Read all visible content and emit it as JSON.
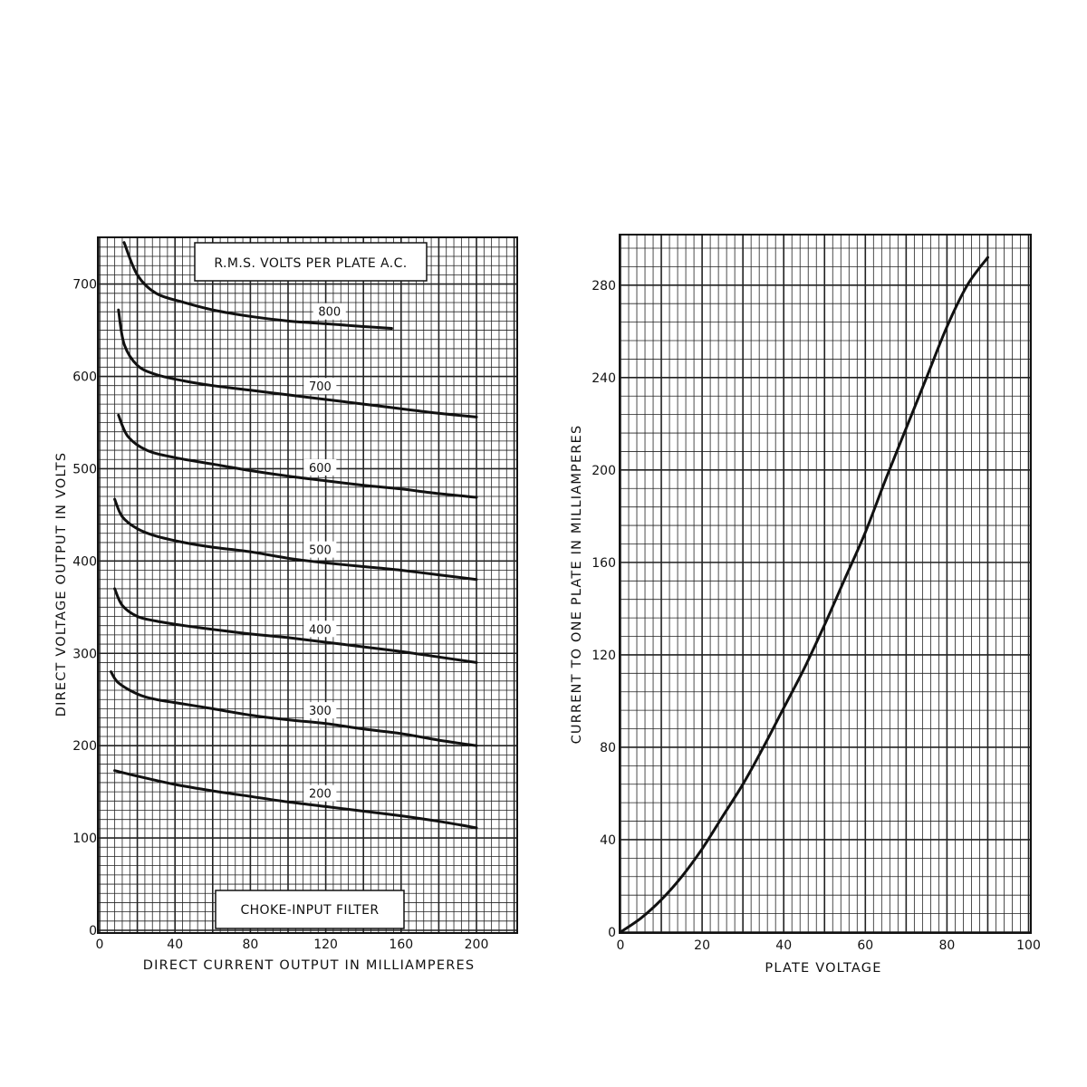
{
  "chart_data": [
    {
      "type": "line",
      "title": "",
      "xlabel": "DIRECT CURRENT OUTPUT IN MILLIAMPERES",
      "ylabel": "DIRECT VOLTAGE OUTPUT IN VOLTS",
      "xlim": [
        0,
        220
      ],
      "ylim": [
        0,
        750
      ],
      "x_ticks": [
        "0",
        "40",
        "80",
        "120",
        "160",
        "200"
      ],
      "y_ticks": [
        "0",
        "100",
        "200",
        "300",
        "400",
        "500",
        "600",
        "700"
      ],
      "grid": true,
      "legend_title": "R.M.S. VOLTS PER PLATE A.C.",
      "annotation": "CHOKE-INPUT FILTER",
      "series": [
        {
          "name": "800",
          "x": [
            13,
            20,
            30,
            45,
            60,
            80,
            100,
            120,
            140,
            155
          ],
          "y": [
            745,
            710,
            690,
            680,
            672,
            665,
            660,
            657,
            654,
            652
          ]
        },
        {
          "name": "700",
          "x": [
            10,
            13,
            20,
            30,
            45,
            60,
            80,
            100,
            120,
            140,
            160,
            180,
            200
          ],
          "y": [
            672,
            635,
            612,
            602,
            595,
            590,
            585,
            580,
            575,
            570,
            565,
            560,
            556
          ]
        },
        {
          "name": "600",
          "x": [
            10,
            15,
            25,
            40,
            60,
            80,
            100,
            120,
            140,
            160,
            180,
            200
          ],
          "y": [
            558,
            535,
            520,
            512,
            505,
            498,
            492,
            487,
            482,
            478,
            473,
            469
          ]
        },
        {
          "name": "500",
          "x": [
            8,
            12,
            20,
            30,
            45,
            60,
            80,
            100,
            120,
            140,
            160,
            180,
            200
          ],
          "y": [
            467,
            448,
            435,
            427,
            420,
            415,
            410,
            403,
            398,
            394,
            390,
            385,
            380
          ]
        },
        {
          "name": "400",
          "x": [
            8,
            12,
            20,
            30,
            45,
            60,
            80,
            100,
            120,
            140,
            160,
            180,
            200
          ],
          "y": [
            370,
            352,
            340,
            335,
            330,
            326,
            321,
            317,
            312,
            307,
            302,
            296,
            290
          ]
        },
        {
          "name": "300",
          "x": [
            6,
            10,
            20,
            30,
            45,
            60,
            80,
            100,
            120,
            140,
            160,
            180,
            200
          ],
          "y": [
            280,
            268,
            256,
            250,
            245,
            240,
            233,
            228,
            224,
            218,
            213,
            206,
            200
          ]
        },
        {
          "name": "200",
          "x": [
            8,
            20,
            40,
            60,
            80,
            100,
            120,
            140,
            160,
            180,
            200
          ],
          "y": [
            173,
            167,
            158,
            151,
            145,
            139,
            134,
            129,
            124,
            118,
            111
          ]
        }
      ]
    },
    {
      "type": "line",
      "title": "",
      "xlabel": "PLATE VOLTAGE",
      "ylabel": "CURRENT TO ONE PLATE IN MILLIAMPERES",
      "xlim": [
        0,
        100
      ],
      "ylim": [
        0,
        300
      ],
      "x_ticks": [
        "0",
        "20",
        "40",
        "60",
        "80",
        "100"
      ],
      "y_ticks": [
        "0",
        "40",
        "80",
        "120",
        "160",
        "200",
        "240",
        "280"
      ],
      "grid": true,
      "series": [
        {
          "x": [
            0,
            5,
            10,
            15,
            20,
            25,
            30,
            35,
            40,
            45,
            50,
            55,
            60,
            65,
            70,
            75,
            80,
            85,
            90
          ],
          "y": [
            0,
            6,
            14,
            24,
            36,
            50,
            64,
            80,
            97,
            114,
            133,
            153,
            173,
            196,
            218,
            240,
            262,
            280,
            292
          ]
        }
      ]
    }
  ]
}
